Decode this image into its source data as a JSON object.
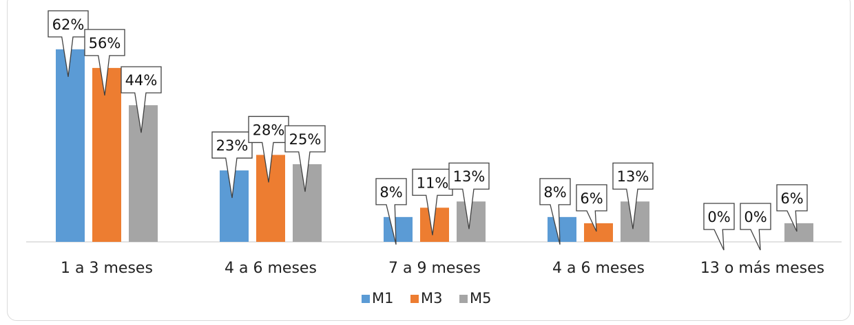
{
  "chart_data": {
    "type": "bar",
    "title": "",
    "categories": [
      "1 a 3 meses",
      "4 a 6 meses",
      "7 a 9 meses",
      "4 a 6 meses",
      "13 o más meses"
    ],
    "series": [
      {
        "name": "M1",
        "color": "#5b9bd5",
        "values": [
          62,
          23,
          8,
          8,
          0
        ],
        "labels": [
          "62%",
          "23%",
          "8%",
          "8%",
          "0%"
        ]
      },
      {
        "name": "M3",
        "color": "#ed7d31",
        "values": [
          56,
          28,
          11,
          6,
          0
        ],
        "labels": [
          "56%",
          "28%",
          "11%",
          "6%",
          "0%"
        ]
      },
      {
        "name": "M5",
        "color": "#a5a5a5",
        "values": [
          44,
          25,
          13,
          13,
          6
        ],
        "labels": [
          "44%",
          "25%",
          "13%",
          "13%",
          "6%"
        ]
      }
    ],
    "ylim": [
      0,
      70
    ],
    "grid": false,
    "legend_position": "bottom",
    "data_label_style": "callout",
    "xlabel": "",
    "ylabel": ""
  }
}
